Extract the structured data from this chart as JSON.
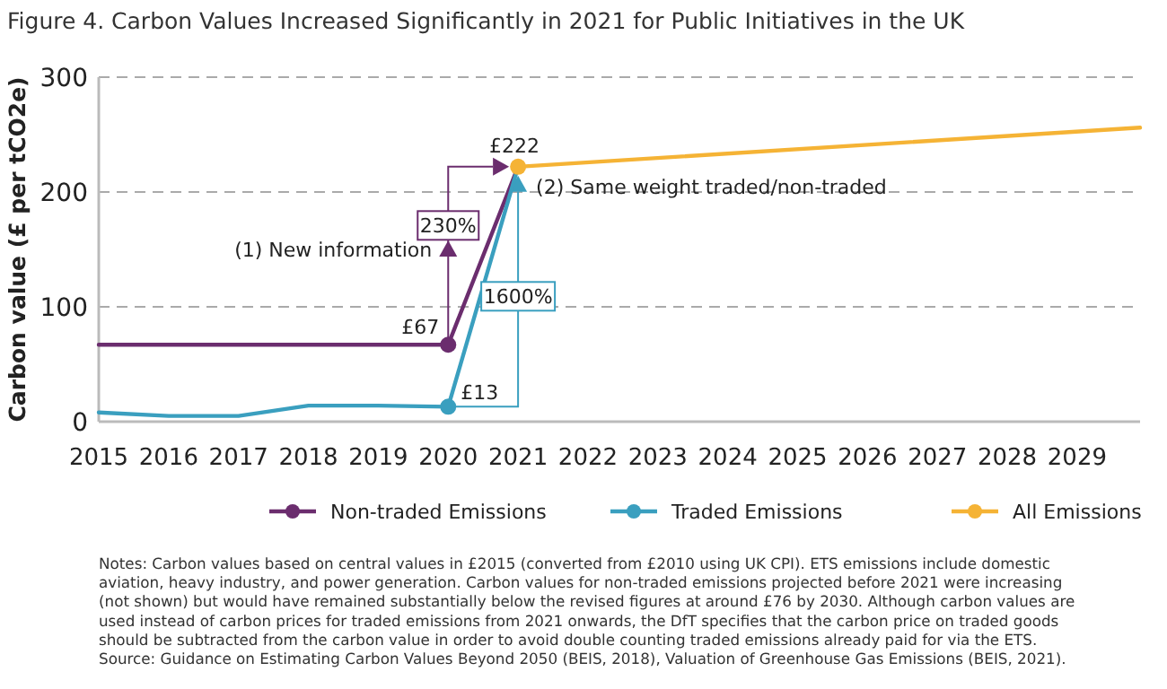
{
  "chart_data": {
    "type": "line",
    "title": "Figure 4.  Carbon Values Increased Significantly in 2021 for Public Initiatives in the UK",
    "ylabel": "Carbon value (£ per tCO2e)",
    "xlim": [
      2015,
      2029.9
    ],
    "xticks": [
      2015,
      2016,
      2017,
      2018,
      2019,
      2020,
      2021,
      2022,
      2023,
      2024,
      2025,
      2026,
      2027,
      2028,
      2029
    ],
    "ylim": [
      0,
      300
    ],
    "yticks": [
      0,
      100,
      200,
      300
    ],
    "grid": "y",
    "legend": "bottom",
    "line_style": "solid",
    "series": [
      {
        "name": "Non-traded Emissions",
        "color": "#6b2d6e",
        "x": [
          2015,
          2016,
          2017,
          2018,
          2019,
          2020,
          2021
        ],
        "values": [
          67,
          67,
          67,
          67,
          67,
          67,
          222
        ],
        "value_labels": [
          null,
          null,
          null,
          null,
          null,
          "£67",
          null
        ]
      },
      {
        "name": "Traded Emissions",
        "color": "#3a9fbf",
        "x": [
          2015,
          2016,
          2017,
          2018,
          2019,
          2020,
          2021
        ],
        "values": [
          8,
          5,
          5,
          14,
          14,
          13,
          222
        ],
        "value_labels": [
          null,
          null,
          null,
          null,
          null,
          "£13",
          null
        ]
      },
      {
        "name": "All Emissions",
        "color": "#f5b335",
        "x": [
          2021,
          2029.9
        ],
        "values": [
          222,
          256
        ],
        "value_labels": [
          "£222",
          null
        ]
      }
    ],
    "annotations": [
      {
        "text": "(1) New information",
        "x": 2020,
        "y": 150
      },
      "230%",
      "1600%",
      "(2) Same weight traded/non-traded",
      "Notes: Carbon values based on central values in £2015 (converted from £2010 using UK CPI). ETS emissions include domestic aviation, heavy industry, and power generation. Carbon values for non-traded emissions projected before 2021 were increasing (not shown) but would have remained substantially below the revised figures at around £76 by 2030. Although carbon values are used instead of carbon prices for traded emissions from 2021 onwards, the DfT specifies that the carbon price on traded goods should be subtracted from the carbon value in order to avoid double counting traded emissions already paid for via the ETS.",
      "Source: Guidance on Estimating Carbon Values Beyond 2050 (BEIS, 2018), Valuation of Greenhouse Gas Emissions (BEIS, 2021)."
    ]
  }
}
